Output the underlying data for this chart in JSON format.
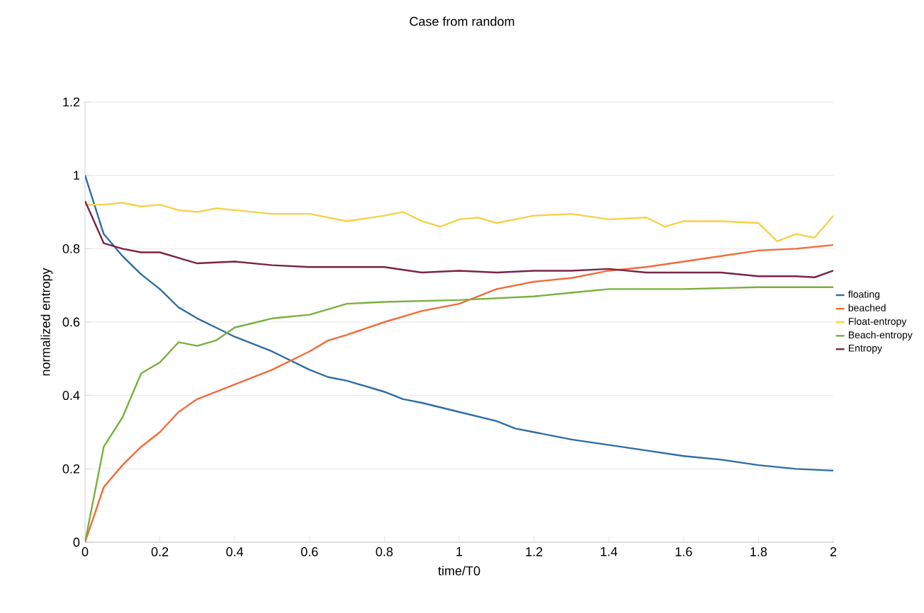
{
  "chart_data": {
    "type": "line",
    "title": "Case from random",
    "xlabel": "time/T0",
    "ylabel": "normalized entropy",
    "xlim": [
      0,
      2
    ],
    "xticks": [
      0,
      0.2,
      0.4,
      0.6,
      0.8,
      1,
      1.2,
      1.4,
      1.6,
      1.8,
      2
    ],
    "ylim": [
      0,
      1.2
    ],
    "yticks": [
      0,
      0.2,
      0.4,
      0.6,
      0.8,
      1,
      1.2
    ],
    "grid": "y",
    "legend": "right",
    "marker": "none",
    "line_style": "solid",
    "series": [
      {
        "name": "floating",
        "color": "#2e6da4",
        "x": [
          0,
          0.05,
          0.1,
          0.15,
          0.2,
          0.25,
          0.3,
          0.35,
          0.4,
          0.5,
          0.6,
          0.65,
          0.7,
          0.8,
          0.85,
          0.9,
          1.0,
          1.1,
          1.15,
          1.2,
          1.3,
          1.4,
          1.5,
          1.6,
          1.7,
          1.8,
          1.9,
          2.0
        ],
        "values": [
          1.0,
          0.84,
          0.78,
          0.73,
          0.69,
          0.64,
          0.61,
          0.585,
          0.56,
          0.52,
          0.47,
          0.45,
          0.44,
          0.41,
          0.39,
          0.38,
          0.355,
          0.33,
          0.31,
          0.3,
          0.28,
          0.265,
          0.25,
          0.235,
          0.225,
          0.21,
          0.2,
          0.195
        ]
      },
      {
        "name": "beached",
        "color": "#f26b3a",
        "x": [
          0,
          0.05,
          0.1,
          0.15,
          0.2,
          0.25,
          0.3,
          0.35,
          0.4,
          0.5,
          0.6,
          0.65,
          0.7,
          0.8,
          0.9,
          1.0,
          1.1,
          1.2,
          1.3,
          1.4,
          1.5,
          1.6,
          1.7,
          1.8,
          1.9,
          2.0
        ],
        "values": [
          0,
          0.15,
          0.21,
          0.26,
          0.3,
          0.355,
          0.39,
          0.41,
          0.43,
          0.47,
          0.52,
          0.55,
          0.565,
          0.6,
          0.63,
          0.65,
          0.69,
          0.71,
          0.72,
          0.74,
          0.75,
          0.765,
          0.78,
          0.795,
          0.8,
          0.81
        ]
      },
      {
        "name": "Float-entropy",
        "color": "#f5d24a",
        "x": [
          0,
          0.05,
          0.1,
          0.15,
          0.2,
          0.25,
          0.3,
          0.35,
          0.4,
          0.5,
          0.6,
          0.7,
          0.8,
          0.85,
          0.9,
          0.95,
          1.0,
          1.05,
          1.1,
          1.2,
          1.3,
          1.4,
          1.5,
          1.55,
          1.6,
          1.7,
          1.8,
          1.85,
          1.9,
          1.95,
          2.0
        ],
        "values": [
          0.92,
          0.92,
          0.925,
          0.915,
          0.92,
          0.905,
          0.9,
          0.91,
          0.905,
          0.895,
          0.895,
          0.875,
          0.89,
          0.9,
          0.875,
          0.86,
          0.88,
          0.885,
          0.87,
          0.89,
          0.895,
          0.88,
          0.885,
          0.86,
          0.875,
          0.875,
          0.87,
          0.82,
          0.84,
          0.83,
          0.89
        ]
      },
      {
        "name": "Beach-entropy",
        "color": "#78b03f",
        "x": [
          0,
          0.05,
          0.1,
          0.15,
          0.2,
          0.25,
          0.3,
          0.35,
          0.4,
          0.5,
          0.6,
          0.7,
          0.8,
          1.0,
          1.2,
          1.3,
          1.4,
          1.6,
          1.8,
          2.0
        ],
        "values": [
          0,
          0.26,
          0.34,
          0.46,
          0.49,
          0.545,
          0.535,
          0.55,
          0.585,
          0.61,
          0.62,
          0.65,
          0.655,
          0.66,
          0.67,
          0.68,
          0.69,
          0.69,
          0.695,
          0.695
        ]
      },
      {
        "name": "Entropy",
        "color": "#7b2448",
        "x": [
          0,
          0.05,
          0.1,
          0.15,
          0.2,
          0.3,
          0.4,
          0.5,
          0.6,
          0.7,
          0.8,
          0.9,
          1.0,
          1.1,
          1.2,
          1.3,
          1.4,
          1.5,
          1.6,
          1.7,
          1.8,
          1.9,
          1.95,
          2.0
        ],
        "values": [
          0.93,
          0.815,
          0.8,
          0.79,
          0.79,
          0.76,
          0.765,
          0.755,
          0.75,
          0.75,
          0.75,
          0.735,
          0.74,
          0.735,
          0.74,
          0.74,
          0.745,
          0.735,
          0.735,
          0.735,
          0.725,
          0.725,
          0.722,
          0.74
        ]
      }
    ]
  }
}
